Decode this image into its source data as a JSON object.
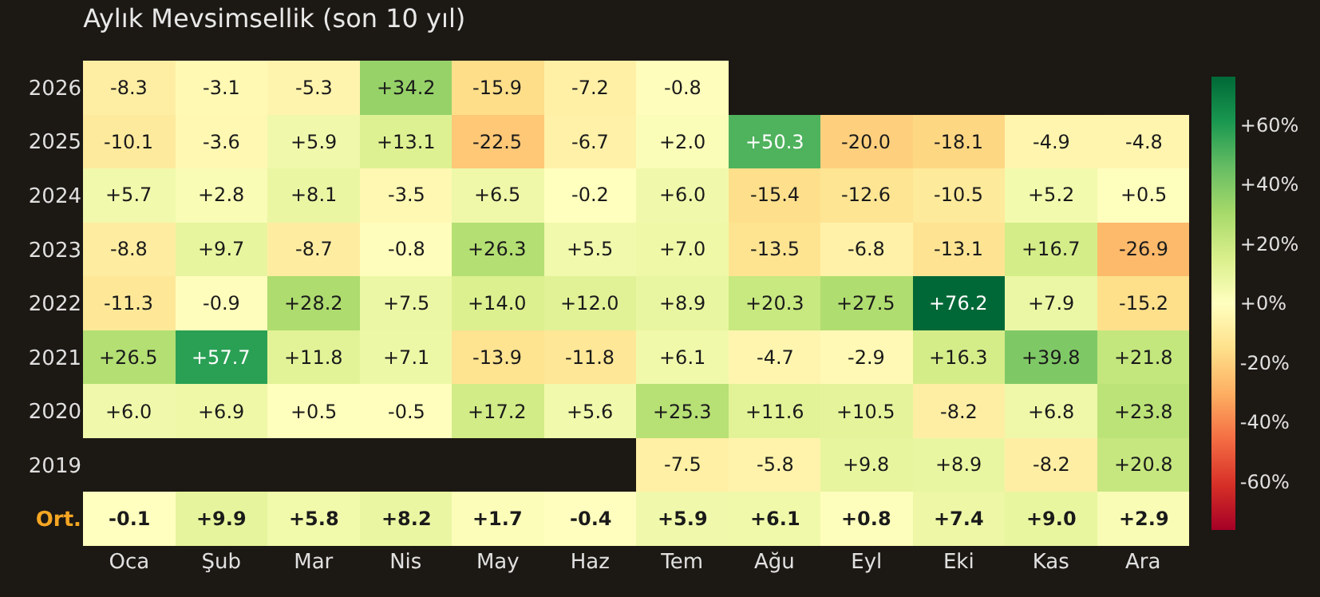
{
  "chart_data": {
    "type": "heatmap",
    "title": "Aylık Mevsimsellik (son 10 yıl)",
    "categories": [
      "Oca",
      "Şub",
      "Mar",
      "Nis",
      "May",
      "Haz",
      "Tem",
      "Ağu",
      "Eyl",
      "Eki",
      "Kas",
      "Ara"
    ],
    "y_categories": [
      "2026",
      "2025",
      "2024",
      "2023",
      "2022",
      "2021",
      "2020",
      "2019",
      "Ort."
    ],
    "cells": [
      [
        -8.3,
        -3.1,
        -5.3,
        34.2,
        -15.9,
        -7.2,
        -0.8,
        null,
        null,
        null,
        null,
        null
      ],
      [
        -10.1,
        -3.6,
        5.9,
        13.1,
        -22.5,
        -6.7,
        2.0,
        50.3,
        -20.0,
        -18.1,
        -4.9,
        -4.8
      ],
      [
        5.7,
        2.8,
        8.1,
        -3.5,
        6.5,
        -0.2,
        6.0,
        -15.4,
        -12.6,
        -10.5,
        5.2,
        0.5
      ],
      [
        -8.8,
        9.7,
        -8.7,
        -0.8,
        26.3,
        5.5,
        7.0,
        -13.5,
        -6.8,
        -13.1,
        16.7,
        -26.9
      ],
      [
        -11.3,
        -0.9,
        28.2,
        7.5,
        14.0,
        12.0,
        8.9,
        20.3,
        27.5,
        76.2,
        7.9,
        -15.2
      ],
      [
        26.5,
        57.7,
        11.8,
        7.1,
        -13.9,
        -11.8,
        6.1,
        -4.7,
        -2.9,
        16.3,
        39.8,
        21.8
      ],
      [
        6.0,
        6.9,
        0.5,
        -0.5,
        17.2,
        5.6,
        25.3,
        11.6,
        10.5,
        -8.2,
        6.8,
        23.8
      ],
      [
        null,
        null,
        null,
        null,
        null,
        null,
        -7.5,
        -5.8,
        9.8,
        8.9,
        -8.2,
        20.8
      ],
      [
        -0.1,
        9.9,
        5.8,
        8.2,
        1.7,
        -0.4,
        5.9,
        6.1,
        0.8,
        7.4,
        9.0,
        2.9
      ]
    ],
    "cell_labels": [
      [
        "-8.3",
        "-3.1",
        "-5.3",
        "+34.2",
        "-15.9",
        "-7.2",
        "-0.8",
        null,
        null,
        null,
        null,
        null
      ],
      [
        "-10.1",
        "-3.6",
        "+5.9",
        "+13.1",
        "-22.5",
        "-6.7",
        "+2.0",
        "+50.3",
        "-20.0",
        "-18.1",
        "-4.9",
        "-4.8"
      ],
      [
        "+5.7",
        "+2.8",
        "+8.1",
        "-3.5",
        "+6.5",
        "-0.2",
        "+6.0",
        "-15.4",
        "-12.6",
        "-10.5",
        "+5.2",
        "+0.5"
      ],
      [
        "-8.8",
        "+9.7",
        "-8.7",
        "-0.8",
        "+26.3",
        "+5.5",
        "+7.0",
        "-13.5",
        "-6.8",
        "-13.1",
        "+16.7",
        "-26.9"
      ],
      [
        "-11.3",
        "-0.9",
        "+28.2",
        "+7.5",
        "+14.0",
        "+12.0",
        "+8.9",
        "+20.3",
        "+27.5",
        "+76.2",
        "+7.9",
        "-15.2"
      ],
      [
        "+26.5",
        "+57.7",
        "+11.8",
        "+7.1",
        "-13.9",
        "-11.8",
        "+6.1",
        "-4.7",
        "-2.9",
        "+16.3",
        "+39.8",
        "+21.8"
      ],
      [
        "+6.0",
        "+6.9",
        "+0.5",
        "-0.5",
        "+17.2",
        "+5.6",
        "+25.3",
        "+11.6",
        "+10.5",
        "-8.2",
        "+6.8",
        "+23.8"
      ],
      [
        null,
        null,
        null,
        null,
        null,
        null,
        "-7.5",
        "-5.8",
        "+9.8",
        "+8.9",
        "-8.2",
        "+20.8"
      ],
      [
        "-0.1",
        "+9.9",
        "+5.8",
        "+8.2",
        "+1.7",
        "-0.4",
        "+5.9",
        "+6.1",
        "+0.8",
        "+7.4",
        "+9.0",
        "+2.9"
      ]
    ],
    "clim": [
      -76.2,
      76.2
    ],
    "cticks": [
      {
        "value": 60,
        "label": "+60%"
      },
      {
        "value": 40,
        "label": "+40%"
      },
      {
        "value": 20,
        "label": "+20%"
      },
      {
        "value": 0,
        "label": "+0%"
      },
      {
        "value": -20,
        "label": "-20%"
      },
      {
        "value": -40,
        "label": "-40%"
      },
      {
        "value": -60,
        "label": "-60%"
      }
    ]
  }
}
